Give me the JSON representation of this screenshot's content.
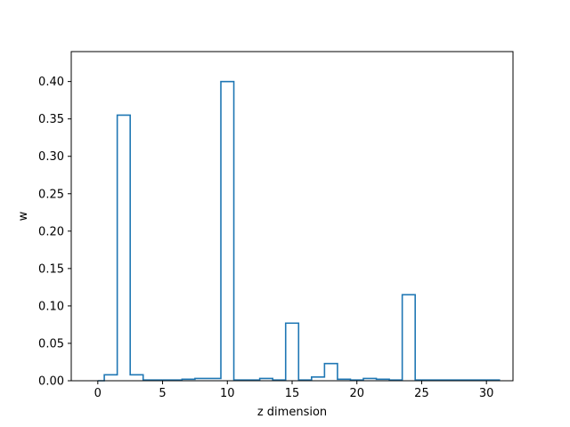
{
  "chart_data": {
    "type": "bar",
    "style": "step-histogram",
    "title": "",
    "xlabel": "z dimension",
    "ylabel": "w",
    "xlim": [
      -2.05,
      32.05
    ],
    "ylim": [
      0,
      0.44
    ],
    "xticks": [
      0,
      5,
      10,
      15,
      20,
      25,
      30
    ],
    "yticks": [
      0.0,
      0.05,
      0.1,
      0.15,
      0.2,
      0.25,
      0.3,
      0.35,
      0.4
    ],
    "ytick_labels": [
      "0.00",
      "0.05",
      "0.10",
      "0.15",
      "0.20",
      "0.25",
      "0.30",
      "0.35",
      "0.40"
    ],
    "bin_edges": [
      0,
      0.5,
      1.5,
      2.5,
      3.5,
      4.5,
      5.5,
      6.5,
      7.5,
      8.5,
      9.5,
      10.5,
      11.5,
      12.5,
      13.5,
      14.5,
      15.5,
      16.5,
      17.5,
      18.5,
      19.5,
      20.5,
      21.5,
      22.5,
      23.5,
      24.5,
      25.5,
      26.5,
      27.5,
      28.5,
      29.5,
      30.5,
      31
    ],
    "values": [
      0.0,
      0.008,
      0.355,
      0.008,
      0.001,
      0.001,
      0.001,
      0.002,
      0.003,
      0.003,
      0.4,
      0.001,
      0.001,
      0.003,
      0.001,
      0.077,
      0.001,
      0.005,
      0.023,
      0.002,
      0.001,
      0.003,
      0.002,
      0.001,
      0.115,
      0.001,
      0.001,
      0.001,
      0.001,
      0.001,
      0.001,
      0.001
    ],
    "line_color": "#1f77b4",
    "grid": false,
    "legend": null
  }
}
